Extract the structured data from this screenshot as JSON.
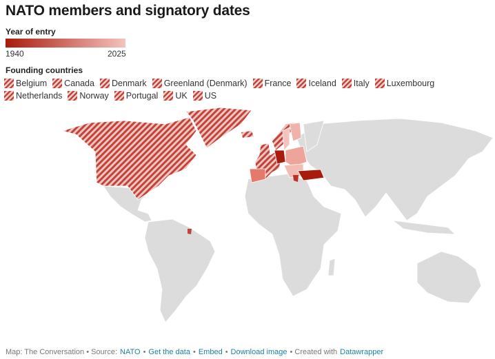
{
  "title": "NATO members and signatory dates",
  "legend": {
    "title": "Year of entry",
    "min": 1940,
    "max": 2025,
    "colors": [
      "#a91b0d",
      "#f4c3bd"
    ]
  },
  "founding": {
    "title": "Founding countries",
    "color": "#c0443a",
    "countries": [
      "Belgium",
      "Canada",
      "Denmark",
      "Greenland (Denmark)",
      "France",
      "Iceland",
      "Italy",
      "Luxembourg",
      "Netherlands",
      "Norway",
      "Portugal",
      "UK",
      "US"
    ]
  },
  "footer": [
    {
      "text": "Map: The Conversation • Source:",
      "link": false
    },
    {
      "text": "NATO",
      "link": true
    },
    {
      "text": "•",
      "link": false
    },
    {
      "text": "Get the data",
      "link": true
    },
    {
      "text": "•",
      "link": false
    },
    {
      "text": "Embed",
      "link": true
    },
    {
      "text": "•",
      "link": false
    },
    {
      "text": "Download image",
      "link": true
    },
    {
      "text": "• Created with",
      "link": false
    },
    {
      "text": "Datawrapper",
      "link": true
    }
  ]
}
